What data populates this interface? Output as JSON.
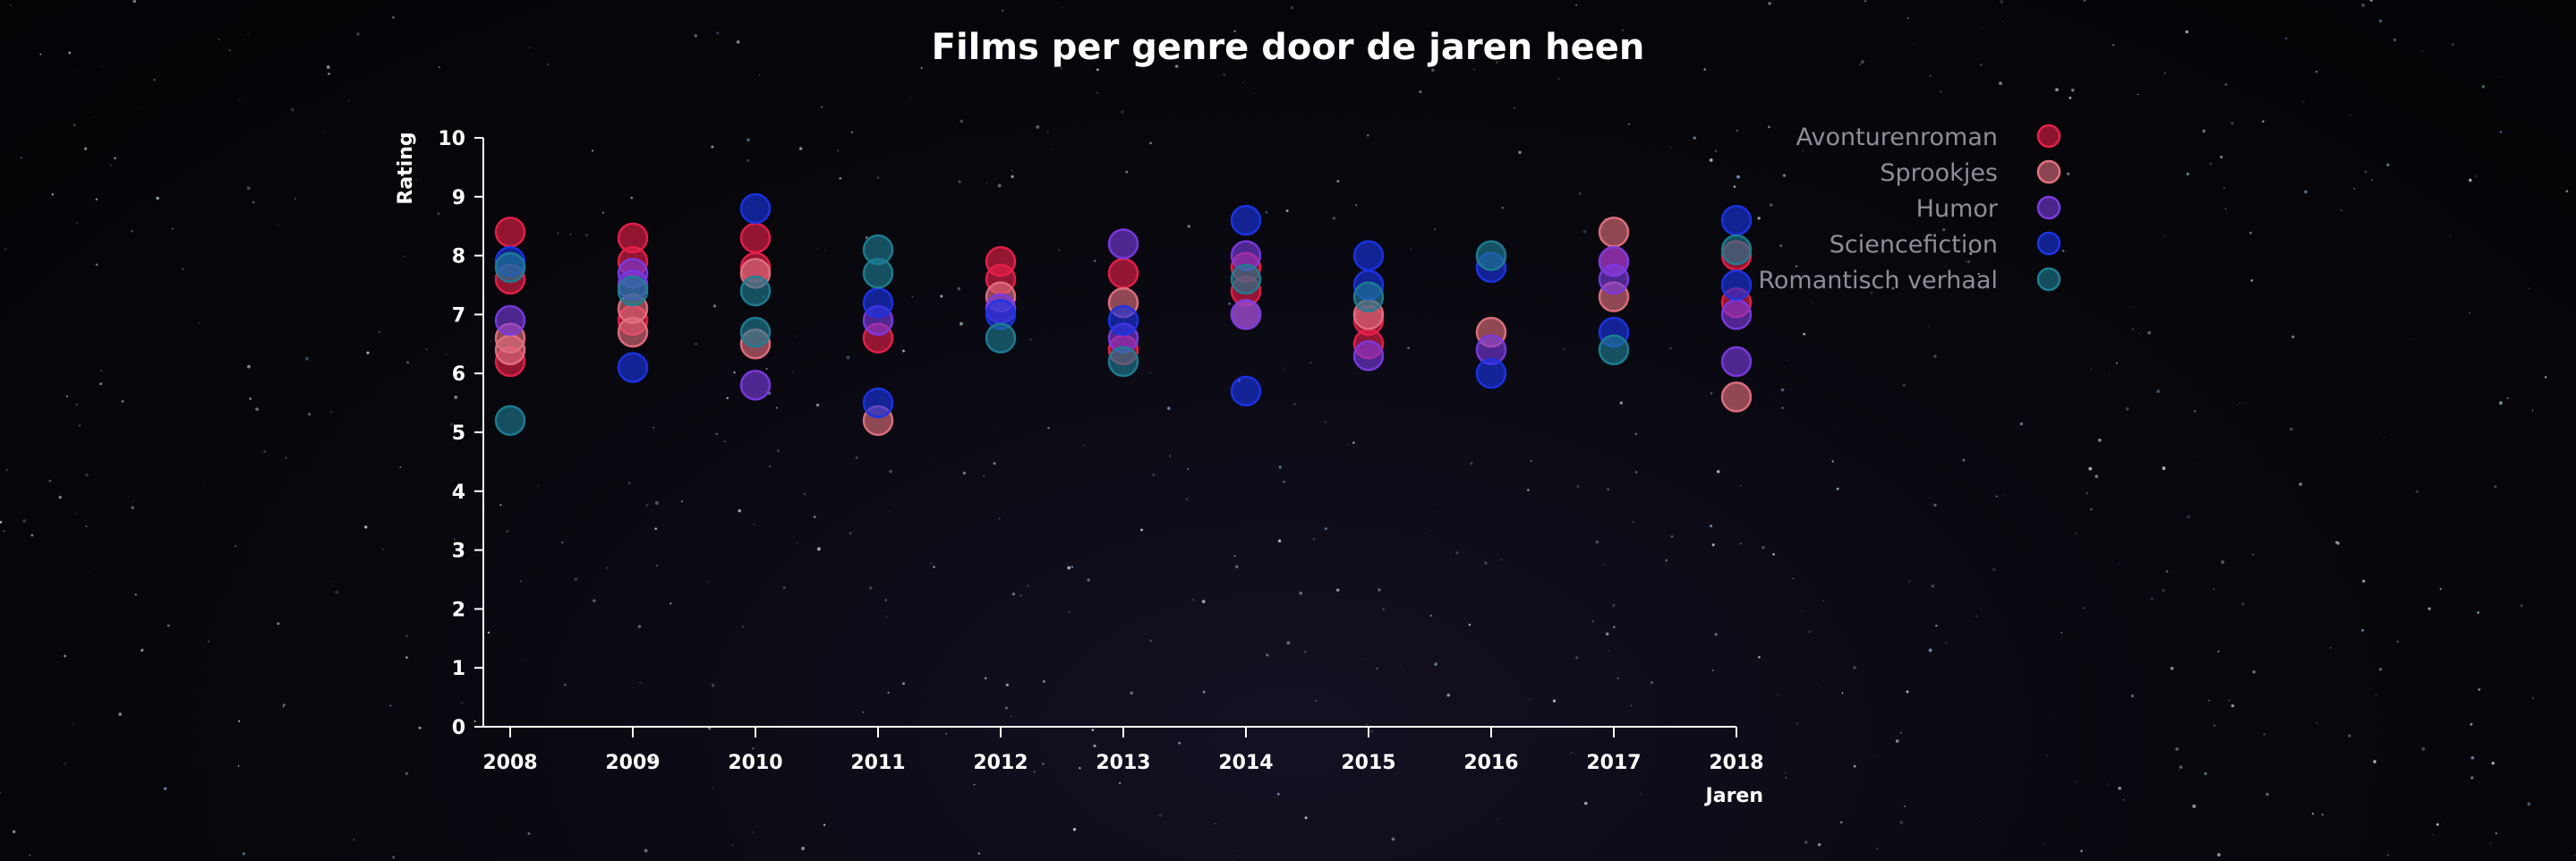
{
  "title": "Films per genre door de jaren heen",
  "chart_data": {
    "type": "scatter",
    "title": "Films per genre door de jaren heen",
    "xlabel": "Jaren",
    "ylabel": "Rating",
    "x_ticks": [
      "2008",
      "2009",
      "2010",
      "2011",
      "2012",
      "2013",
      "2014",
      "2015",
      "2016",
      "2017",
      "2018"
    ],
    "ylim": [
      0,
      10
    ],
    "y_ticks": [
      0,
      1,
      2,
      3,
      4,
      5,
      6,
      7,
      8,
      9,
      10
    ],
    "grid": false,
    "legend_position": "top-right",
    "series": [
      {
        "name": "Avonturenroman",
        "color": "#e8204a",
        "points": [
          {
            "x": "2008",
            "y": 8.4
          },
          {
            "x": "2008",
            "y": 7.6
          },
          {
            "x": "2008",
            "y": 6.2
          },
          {
            "x": "2009",
            "y": 8.3
          },
          {
            "x": "2009",
            "y": 7.9
          },
          {
            "x": "2009",
            "y": 6.9
          },
          {
            "x": "2010",
            "y": 8.3
          },
          {
            "x": "2010",
            "y": 7.8
          },
          {
            "x": "2011",
            "y": 6.6
          },
          {
            "x": "2012",
            "y": 7.9
          },
          {
            "x": "2012",
            "y": 7.6
          },
          {
            "x": "2013",
            "y": 7.7
          },
          {
            "x": "2013",
            "y": 6.4
          },
          {
            "x": "2014",
            "y": 7.8
          },
          {
            "x": "2014",
            "y": 7.4
          },
          {
            "x": "2015",
            "y": 6.9
          },
          {
            "x": "2015",
            "y": 6.5
          },
          {
            "x": "2017",
            "y": 7.9
          },
          {
            "x": "2018",
            "y": 8.0
          },
          {
            "x": "2018",
            "y": 7.2
          }
        ]
      },
      {
        "name": "Sprookjes",
        "color": "#e2707e",
        "points": [
          {
            "x": "2008",
            "y": 6.6
          },
          {
            "x": "2008",
            "y": 6.4
          },
          {
            "x": "2009",
            "y": 7.1
          },
          {
            "x": "2009",
            "y": 6.7
          },
          {
            "x": "2010",
            "y": 7.7
          },
          {
            "x": "2010",
            "y": 6.5
          },
          {
            "x": "2011",
            "y": 5.2
          },
          {
            "x": "2012",
            "y": 7.3
          },
          {
            "x": "2013",
            "y": 7.2
          },
          {
            "x": "2014",
            "y": 7.0
          },
          {
            "x": "2015",
            "y": 7.0
          },
          {
            "x": "2016",
            "y": 6.7
          },
          {
            "x": "2017",
            "y": 8.4
          },
          {
            "x": "2017",
            "y": 7.3
          },
          {
            "x": "2018",
            "y": 5.6
          }
        ]
      },
      {
        "name": "Humor",
        "color": "#7a3ae0",
        "points": [
          {
            "x": "2008",
            "y": 6.9
          },
          {
            "x": "2009",
            "y": 7.7
          },
          {
            "x": "2009",
            "y": 7.5
          },
          {
            "x": "2010",
            "y": 5.8
          },
          {
            "x": "2011",
            "y": 6.9
          },
          {
            "x": "2012",
            "y": 7.1
          },
          {
            "x": "2013",
            "y": 8.2
          },
          {
            "x": "2013",
            "y": 6.6
          },
          {
            "x": "2014",
            "y": 8.0
          },
          {
            "x": "2014",
            "y": 7.0
          },
          {
            "x": "2015",
            "y": 6.3
          },
          {
            "x": "2016",
            "y": 6.4
          },
          {
            "x": "2017",
            "y": 7.9
          },
          {
            "x": "2017",
            "y": 7.6
          },
          {
            "x": "2018",
            "y": 7.0
          },
          {
            "x": "2018",
            "y": 6.2
          }
        ]
      },
      {
        "name": "Sciencefiction",
        "color": "#1a34e6",
        "points": [
          {
            "x": "2008",
            "y": 7.9
          },
          {
            "x": "2009",
            "y": 6.1
          },
          {
            "x": "2010",
            "y": 8.8
          },
          {
            "x": "2011",
            "y": 7.2
          },
          {
            "x": "2011",
            "y": 5.5
          },
          {
            "x": "2012",
            "y": 7.0
          },
          {
            "x": "2013",
            "y": 6.9
          },
          {
            "x": "2014",
            "y": 8.6
          },
          {
            "x": "2014",
            "y": 5.7
          },
          {
            "x": "2015",
            "y": 8.0
          },
          {
            "x": "2015",
            "y": 7.5
          },
          {
            "x": "2016",
            "y": 7.8
          },
          {
            "x": "2016",
            "y": 6.0
          },
          {
            "x": "2017",
            "y": 6.7
          },
          {
            "x": "2018",
            "y": 8.6
          },
          {
            "x": "2018",
            "y": 7.5
          }
        ]
      },
      {
        "name": "Romantisch verhaal",
        "color": "#1e7e94",
        "points": [
          {
            "x": "2008",
            "y": 7.8
          },
          {
            "x": "2008",
            "y": 5.2
          },
          {
            "x": "2009",
            "y": 7.4
          },
          {
            "x": "2010",
            "y": 7.4
          },
          {
            "x": "2010",
            "y": 6.7
          },
          {
            "x": "2011",
            "y": 8.1
          },
          {
            "x": "2011",
            "y": 7.7
          },
          {
            "x": "2012",
            "y": 6.6
          },
          {
            "x": "2013",
            "y": 6.2
          },
          {
            "x": "2014",
            "y": 7.6
          },
          {
            "x": "2015",
            "y": 7.3
          },
          {
            "x": "2016",
            "y": 8.0
          },
          {
            "x": "2017",
            "y": 6.4
          },
          {
            "x": "2018",
            "y": 8.1
          }
        ]
      }
    ]
  }
}
